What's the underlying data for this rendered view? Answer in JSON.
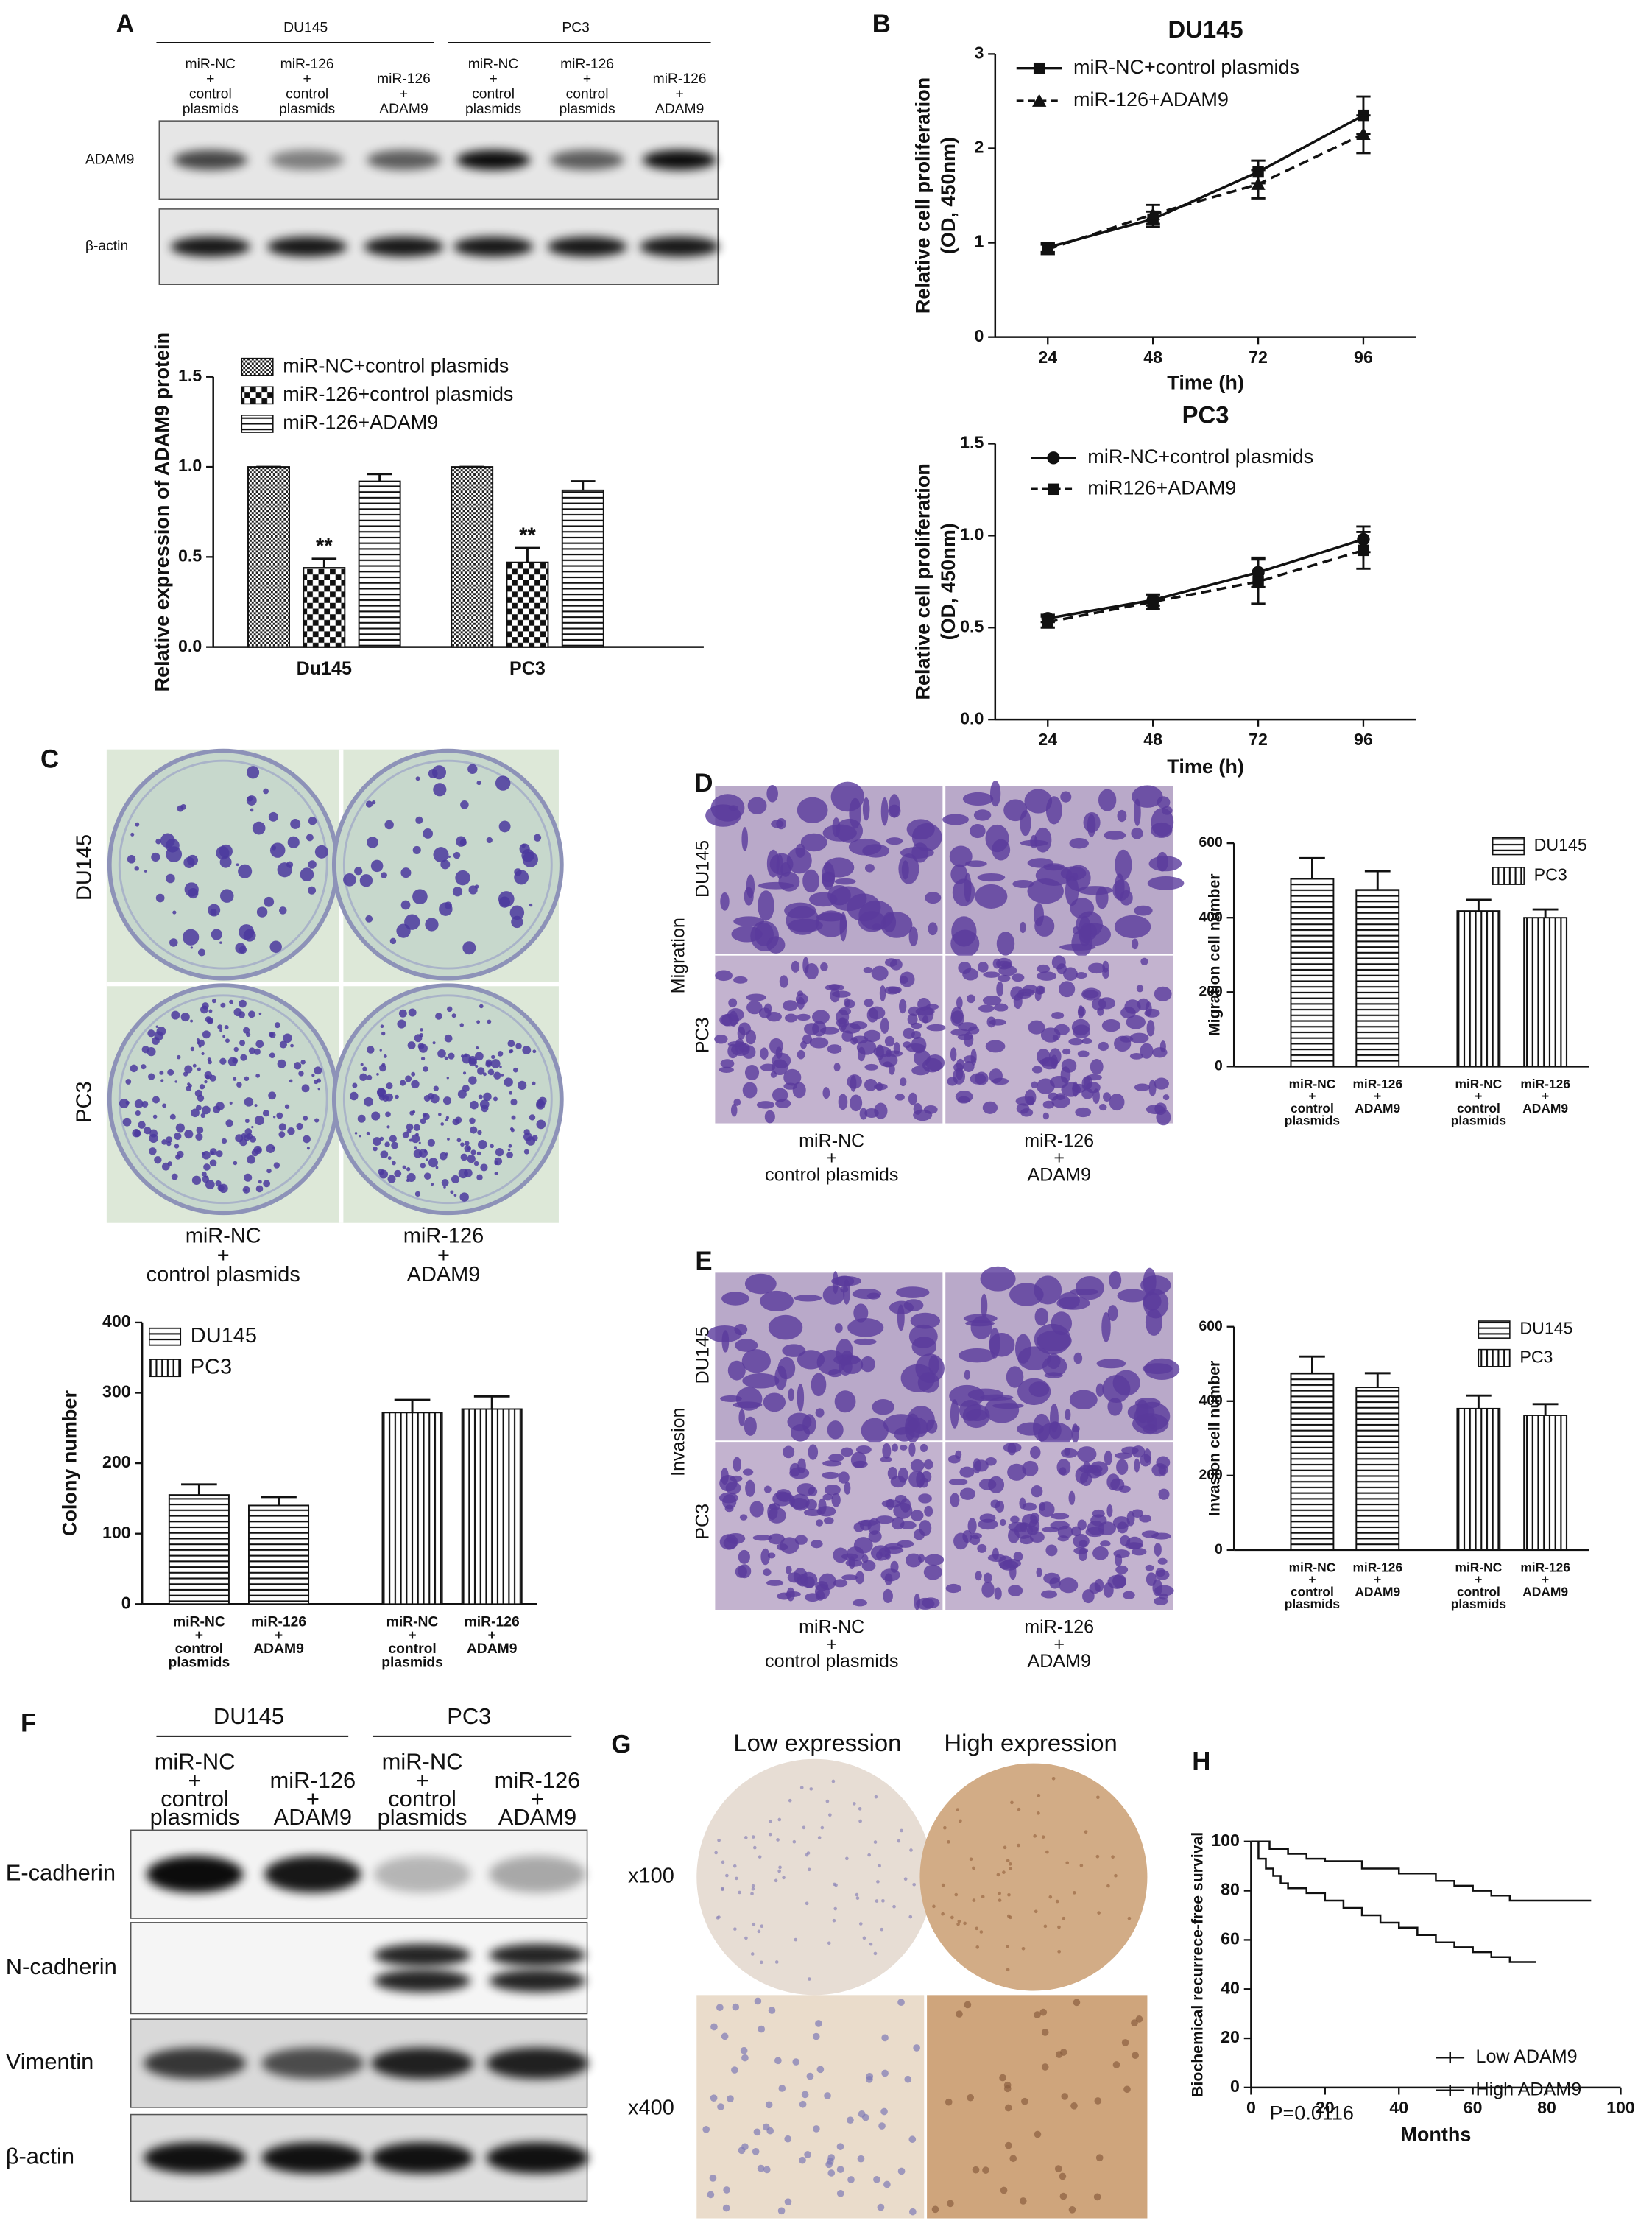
{
  "figure": {
    "A": {
      "letter": "A",
      "groups": [
        "DU145",
        "PC3"
      ],
      "lanes": [
        [
          "miR-NC",
          "+",
          "control",
          "plasmids"
        ],
        [
          "miR-126",
          "+",
          "control",
          "plasmids"
        ],
        [
          "miR-126",
          "+",
          "ADAM9"
        ],
        [
          "miR-NC",
          "+",
          "control",
          "plasmids"
        ],
        [
          "miR-126",
          "+",
          "control",
          "plasmids"
        ],
        [
          "miR-126",
          "+",
          "ADAM9"
        ]
      ],
      "rows": [
        "ADAM9",
        "β-actin"
      ]
    },
    "B": {
      "letter": "B"
    },
    "C": {
      "letter": "C",
      "rows": [
        "DU145",
        "PC3"
      ],
      "columns": [
        [
          "miR-NC",
          "+",
          "control plasmids"
        ],
        [
          "miR-126",
          "+",
          "ADAM9"
        ]
      ]
    },
    "D": {
      "letter": "D",
      "section": "Migration",
      "rows": [
        "DU145",
        "PC3"
      ],
      "columns": [
        [
          "miR-NC",
          "+",
          "control plasmids"
        ],
        [
          "miR-126",
          "+",
          "ADAM9"
        ]
      ]
    },
    "E": {
      "letter": "E",
      "section": "Invasion",
      "rows": [
        "DU145",
        "PC3"
      ],
      "columns": [
        [
          "miR-NC",
          "+",
          "control plasmids"
        ],
        [
          "miR-126",
          "+",
          "ADAM9"
        ]
      ]
    },
    "F": {
      "letter": "F",
      "groups": [
        "DU145",
        "PC3"
      ],
      "lanes": [
        [
          "miR-NC",
          "+",
          "control",
          "plasmids"
        ],
        [
          "miR-126",
          "+",
          "ADAM9"
        ],
        [
          "miR-NC",
          "+",
          "control",
          "plasmids"
        ],
        [
          "miR-126",
          "+",
          "ADAM9"
        ]
      ],
      "rows": [
        "E-cadherin",
        "N-cadherin",
        "Vimentin",
        "β-actin"
      ]
    },
    "G": {
      "letter": "G",
      "columns": [
        "Low expression",
        "High expression"
      ],
      "rows": [
        "x100",
        "x400"
      ]
    },
    "H": {
      "letter": "H"
    }
  },
  "chart_data": [
    {
      "type": "bar",
      "categories": [
        "Du145",
        "PC3"
      ],
      "ylabel": "Relative expression of ADAM9 protein",
      "ylim": [
        0,
        1.5
      ],
      "yticks": [
        {
          "value": 0,
          "label": "0.0"
        },
        0.5,
        {
          "value": 1,
          "label": "1.0"
        },
        1.5
      ],
      "series": [
        {
          "name": "miR-NC+control plasmids",
          "pattern": "grid",
          "values": [
            1,
            1
          ],
          "errors": [
            0,
            0
          ]
        },
        {
          "name": "miR-126+control plasmids",
          "pattern": "checker",
          "values": [
            0.44,
            0.47
          ],
          "errors": [
            0.05,
            0.08
          ],
          "significance": [
            "**",
            "**"
          ]
        },
        {
          "name": "miR-126+ADAM9",
          "pattern": "horizontal",
          "values": [
            0.92,
            0.87
          ],
          "errors": [
            0.04,
            0.05
          ]
        }
      ]
    },
    {
      "type": "line",
      "title": "DU145",
      "x": [
        24,
        48,
        72,
        96
      ],
      "xlim": [
        12,
        108
      ],
      "xticks": [
        24,
        48,
        72,
        96
      ],
      "xlabel": "Time (h)",
      "ylabel": [
        "Relative cell proliferation",
        "(OD, 450nm)"
      ],
      "ylim": [
        0,
        3
      ],
      "yticks": [
        0,
        1,
        2,
        3
      ],
      "series": [
        {
          "name": "miR-NC+control plasmids",
          "color": "#111111",
          "marker": "square",
          "dash": false,
          "values": [
            0.95,
            1.25,
            1.75,
            2.35
          ],
          "errors": [
            0.05,
            0.08,
            0.12,
            0.2
          ]
        },
        {
          "name": "miR-126+ADAM9",
          "color": "#111111",
          "marker": "triangle",
          "dash": true,
          "values": [
            0.93,
            1.3,
            1.62,
            2.15
          ],
          "errors": [
            0.05,
            0.1,
            0.15,
            0.2
          ]
        }
      ]
    },
    {
      "type": "line",
      "title": "PC3",
      "x": [
        24,
        48,
        72,
        96
      ],
      "xlim": [
        12,
        108
      ],
      "xticks": [
        24,
        48,
        72,
        96
      ],
      "xlabel": "Time (h)",
      "ylabel": [
        "Relative cell proliferation",
        "(OD, 450nm)"
      ],
      "ylim": [
        0,
        1.5
      ],
      "yticks": [
        {
          "value": 0,
          "label": "0.0"
        },
        0.5,
        {
          "value": 1,
          "label": "1.0"
        },
        1.5
      ],
      "series": [
        {
          "name": "miR-NC+control plasmids",
          "color": "#111111",
          "marker": "circle",
          "dash": false,
          "values": [
            0.55,
            0.65,
            0.8,
            0.98
          ],
          "errors": [
            0.02,
            0.03,
            0.08,
            0.07
          ]
        },
        {
          "name": "miR126+ADAM9",
          "color": "#111111",
          "marker": "square",
          "dash": true,
          "values": [
            0.53,
            0.64,
            0.75,
            0.92
          ],
          "errors": [
            0.03,
            0.04,
            0.12,
            0.1
          ]
        }
      ]
    },
    {
      "type": "bar",
      "categories": [
        [
          "miR-NC",
          "+",
          "control",
          "plasmids"
        ],
        [
          "miR-126",
          "+",
          "ADAM9"
        ],
        [
          "miR-NC",
          "+",
          "control",
          "plasmids"
        ],
        [
          "miR-126",
          "+",
          "ADAM9"
        ]
      ],
      "ylabel": "Colony number",
      "ylim": [
        0,
        400
      ],
      "yticks": [
        0,
        100,
        200,
        300,
        400
      ],
      "series": [
        {
          "name": "DU145",
          "pattern": "horizontal",
          "values": [
            155,
            140,
            null,
            null
          ],
          "errors": [
            15,
            12,
            null,
            null
          ]
        },
        {
          "name": "PC3",
          "pattern": "vertical",
          "values": [
            null,
            null,
            272,
            277
          ],
          "errors": [
            null,
            null,
            18,
            18
          ]
        }
      ]
    },
    {
      "type": "bar",
      "categories": [
        [
          "miR-NC",
          "+",
          "control",
          "plasmids"
        ],
        [
          "miR-126",
          "+",
          "ADAM9"
        ],
        [
          "miR-NC",
          "+",
          "control",
          "plasmids"
        ],
        [
          "miR-126",
          "+",
          "ADAM9"
        ]
      ],
      "ylabel": "Migration cell number",
      "ylim": [
        0,
        600
      ],
      "yticks": [
        0,
        200,
        400,
        600
      ],
      "series": [
        {
          "name": "DU145",
          "pattern": "horizontal",
          "values": [
            505,
            475,
            null,
            null
          ],
          "errors": [
            55,
            50,
            null,
            null
          ]
        },
        {
          "name": "PC3",
          "pattern": "vertical",
          "values": [
            null,
            null,
            418,
            400
          ],
          "errors": [
            null,
            null,
            30,
            22
          ]
        }
      ]
    },
    {
      "type": "bar",
      "categories": [
        [
          "miR-NC",
          "+",
          "control",
          "plasmids"
        ],
        [
          "miR-126",
          "+",
          "ADAM9"
        ],
        [
          "miR-NC",
          "+",
          "control",
          "plasmids"
        ],
        [
          "miR-126",
          "+",
          "ADAM9"
        ]
      ],
      "ylabel": "Invasion cell number",
      "ylim": [
        0,
        600
      ],
      "yticks": [
        0,
        200,
        400,
        600
      ],
      "series": [
        {
          "name": "DU145",
          "pattern": "horizontal",
          "values": [
            475,
            437,
            null,
            null
          ],
          "errors": [
            45,
            38,
            null,
            null
          ]
        },
        {
          "name": "PC3",
          "pattern": "vertical",
          "values": [
            null,
            null,
            380,
            362
          ],
          "errors": [
            null,
            null,
            35,
            30
          ]
        }
      ]
    },
    {
      "type": "step",
      "xlabel": "Months",
      "ylabel": "Biochemical recurrece-free survival",
      "xlim": [
        0,
        100
      ],
      "xticks": [
        0,
        20,
        40,
        60,
        80,
        100
      ],
      "ylim": [
        0,
        100
      ],
      "yticks": [
        0,
        20,
        40,
        60,
        80,
        100
      ],
      "annotation": "P=0.0116",
      "series": [
        {
          "name": "Low ADAM9",
          "color": "#111111",
          "x": [
            0,
            5,
            10,
            15,
            20,
            30,
            40,
            50,
            55,
            60,
            65,
            70,
            80,
            92
          ],
          "values": [
            100,
            97,
            95,
            93,
            92,
            89,
            87,
            84,
            82,
            80,
            78,
            76,
            76,
            76
          ]
        },
        {
          "name": "High ADAM9",
          "color": "#111111",
          "x": [
            0,
            2,
            4,
            6,
            8,
            10,
            15,
            20,
            25,
            30,
            35,
            40,
            45,
            50,
            55,
            60,
            65,
            70,
            77
          ],
          "values": [
            100,
            93,
            89,
            86,
            83,
            81,
            79,
            76,
            73,
            70,
            67,
            65,
            62,
            59,
            57,
            55,
            53,
            51,
            51
          ]
        }
      ]
    }
  ]
}
